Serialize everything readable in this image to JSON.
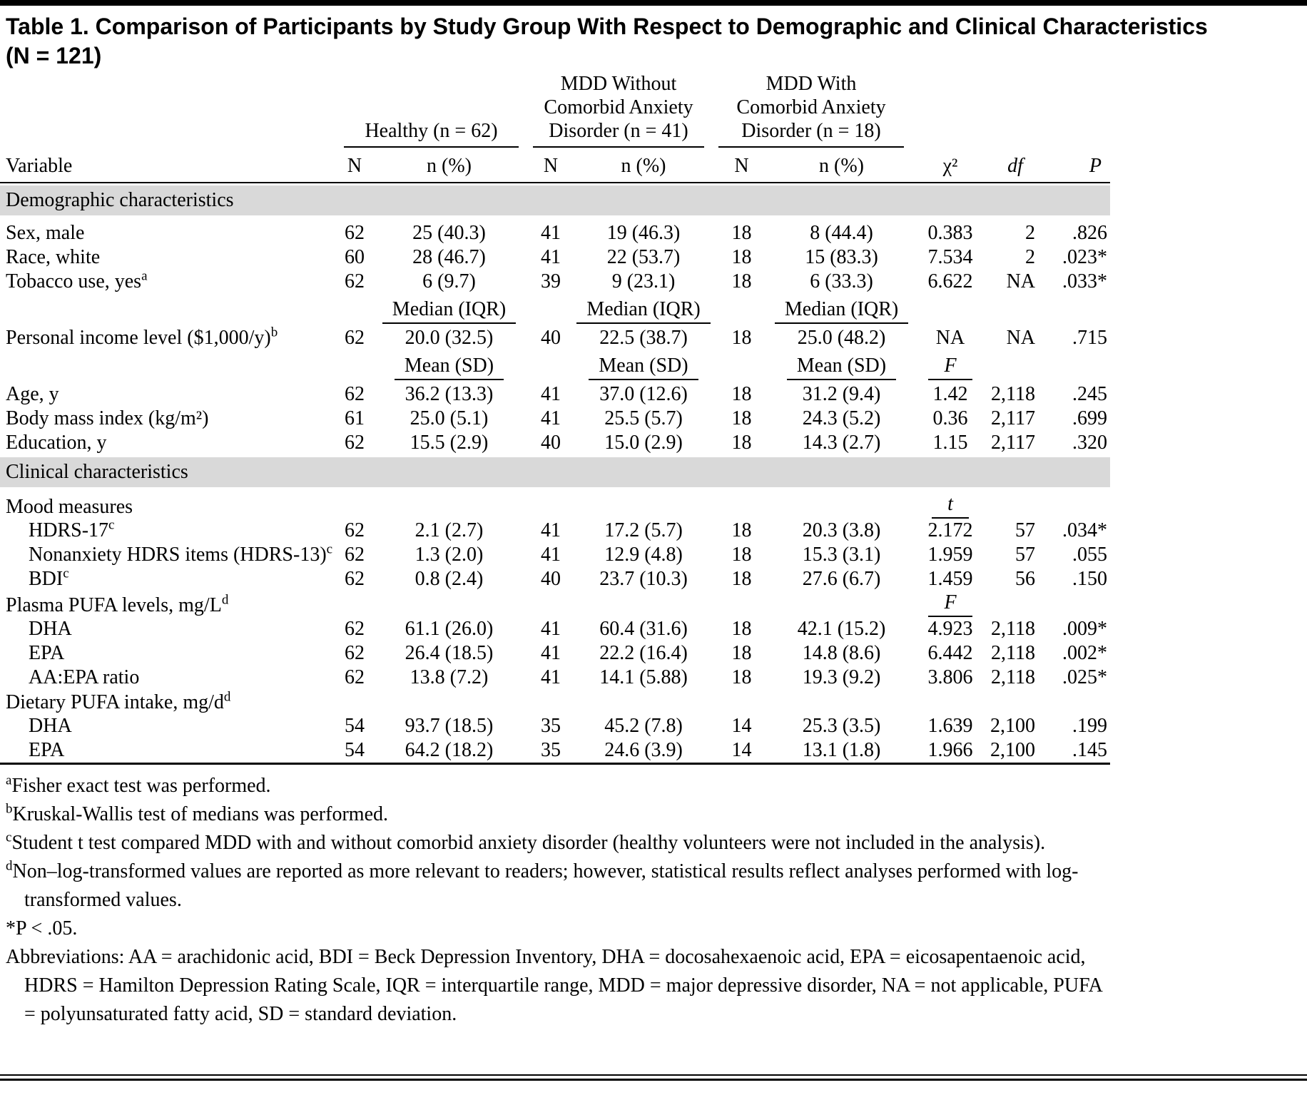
{
  "colors": {
    "section_header_bg": "#d9d9d9",
    "text": "#000000",
    "background": "#ffffff"
  },
  "title": {
    "line1": "Table 1. Comparison of Participants by Study Group With Respect to Demographic and Clinical Characteristics",
    "line2": "(N = 121)"
  },
  "header": {
    "variable": "Variable",
    "groups": [
      {
        "label": "Healthy (n = 62)",
        "n_label": "N",
        "npct_label": "n (%)"
      },
      {
        "label": "MDD Without Comorbid Anxiety Disorder (n = 41)",
        "n_label": "N",
        "npct_label": "n (%)"
      },
      {
        "label": "MDD With Comorbid Anxiety Disorder (n = 18)",
        "n_label": "N",
        "npct_label": "n (%)"
      }
    ],
    "chi2": "χ²",
    "df": "df",
    "p": "P"
  },
  "rows": [
    {
      "type": "section",
      "label": "Demographic characteristics"
    },
    {
      "type": "data",
      "label": "Sex, male",
      "sup": "",
      "indent": false,
      "cells": [
        "62",
        "25 (40.3)",
        "41",
        "19 (46.3)",
        "18",
        "8 (44.4)",
        "0.383",
        "2",
        ".826"
      ]
    },
    {
      "type": "data",
      "label": "Race, white",
      "sup": "",
      "indent": false,
      "cells": [
        "60",
        "28 (46.7)",
        "41",
        "22 (53.7)",
        "18",
        "15 (83.3)",
        "7.534",
        "2",
        ".023*"
      ]
    },
    {
      "type": "data",
      "label": "Tobacco use, yes",
      "sup": "a",
      "indent": false,
      "cells": [
        "62",
        "6 (9.7)",
        "39",
        "9 (23.1)",
        "18",
        "6 (33.3)",
        "6.622",
        "NA",
        ".033*"
      ]
    },
    {
      "type": "subhead",
      "measures": [
        "Median (IQR)",
        "Median (IQR)",
        "Median (IQR)"
      ],
      "stat": ""
    },
    {
      "type": "data",
      "label": "Personal income level ($1,000/y)",
      "sup": "b",
      "indent": false,
      "cells": [
        "62",
        "20.0 (32.5)",
        "40",
        "22.5 (38.7)",
        "18",
        "25.0 (48.2)",
        "NA",
        "NA",
        ".715"
      ]
    },
    {
      "type": "subhead",
      "measures": [
        "Mean (SD)",
        "Mean (SD)",
        "Mean (SD)"
      ],
      "stat": "F"
    },
    {
      "type": "data",
      "label": "Age, y",
      "sup": "",
      "indent": false,
      "cells": [
        "62",
        "36.2 (13.3)",
        "41",
        "37.0 (12.6)",
        "18",
        "31.2 (9.4)",
        "1.42",
        "2,118",
        ".245"
      ]
    },
    {
      "type": "data",
      "label": "Body mass index (kg/m²)",
      "sup": "",
      "indent": false,
      "cells": [
        "61",
        "25.0 (5.1)",
        "41",
        "25.5 (5.7)",
        "18",
        "24.3 (5.2)",
        "0.36",
        "2,117",
        ".699"
      ]
    },
    {
      "type": "data",
      "label": "Education, y",
      "sup": "",
      "indent": false,
      "cells": [
        "62",
        "15.5 (2.9)",
        "40",
        "15.0 (2.9)",
        "18",
        "14.3 (2.7)",
        "1.15",
        "2,117",
        ".320"
      ]
    },
    {
      "type": "section",
      "label": "Clinical characteristics"
    },
    {
      "type": "group",
      "label": "Mood measures",
      "sup": "",
      "stat": "t"
    },
    {
      "type": "data",
      "label": "HDRS-17",
      "sup": "c",
      "indent": true,
      "cells": [
        "62",
        "2.1 (2.7)",
        "41",
        "17.2 (5.7)",
        "18",
        "20.3 (3.8)",
        "2.172",
        "57",
        ".034*"
      ]
    },
    {
      "type": "data",
      "label": "Nonanxiety HDRS items (HDRS-13)",
      "sup": "c",
      "indent": true,
      "cells": [
        "62",
        "1.3 (2.0)",
        "41",
        "12.9 (4.8)",
        "18",
        "15.3 (3.1)",
        "1.959",
        "57",
        ".055"
      ]
    },
    {
      "type": "data",
      "label": "BDI",
      "sup": "c",
      "indent": true,
      "cells": [
        "62",
        "0.8 (2.4)",
        "40",
        "23.7 (10.3)",
        "18",
        "27.6 (6.7)",
        "1.459",
        "56",
        ".150"
      ]
    },
    {
      "type": "group",
      "label": "Plasma PUFA levels, mg/L",
      "sup": "d",
      "stat": "F"
    },
    {
      "type": "data",
      "label": "DHA",
      "sup": "",
      "indent": true,
      "cells": [
        "62",
        "61.1 (26.0)",
        "41",
        "60.4 (31.6)",
        "18",
        "42.1 (15.2)",
        "4.923",
        "2,118",
        ".009*"
      ]
    },
    {
      "type": "data",
      "label": "EPA",
      "sup": "",
      "indent": true,
      "cells": [
        "62",
        "26.4 (18.5)",
        "41",
        "22.2 (16.4)",
        "18",
        "14.8 (8.6)",
        "6.442",
        "2,118",
        ".002*"
      ]
    },
    {
      "type": "data",
      "label": "AA:EPA ratio",
      "sup": "",
      "indent": true,
      "cells": [
        "62",
        "13.8 (7.2)",
        "41",
        "14.1 (5.88)",
        "18",
        "19.3 (9.2)",
        "3.806",
        "2,118",
        ".025*"
      ]
    },
    {
      "type": "group",
      "label": "Dietary PUFA intake, mg/d",
      "sup": "d",
      "stat": ""
    },
    {
      "type": "data",
      "label": "DHA",
      "sup": "",
      "indent": true,
      "cells": [
        "54",
        "93.7 (18.5)",
        "35",
        "45.2 (7.8)",
        "14",
        "25.3 (3.5)",
        "1.639",
        "2,100",
        ".199"
      ]
    },
    {
      "type": "data",
      "label": "EPA",
      "sup": "",
      "indent": true,
      "cells": [
        "54",
        "64.2 (18.2)",
        "35",
        "24.6 (3.9)",
        "14",
        "13.1 (1.8)",
        "1.966",
        "2,100",
        ".145"
      ]
    }
  ],
  "footnotes": [
    {
      "sup": "a",
      "text": "Fisher exact test was performed."
    },
    {
      "sup": "b",
      "text": "Kruskal-Wallis test of medians was performed."
    },
    {
      "sup": "c",
      "text": "Student t test compared MDD with and without comorbid anxiety disorder (healthy volunteers were not included in the analysis)."
    },
    {
      "sup": "d",
      "text": "Non–log-transformed values are reported as more relevant to readers; however, statistical results reflect analyses performed with log-transformed values."
    },
    {
      "sup": "",
      "text": "*P < .05."
    },
    {
      "sup": "",
      "text": "Abbreviations: AA = arachidonic acid, BDI = Beck Depression Inventory, DHA = docosahexaenoic acid, EPA = eicosapentaenoic acid, HDRS = Hamilton Depression Rating Scale, IQR = interquartile range, MDD = major depressive disorder, NA = not applicable, PUFA = polyunsaturated fatty acid, SD = standard deviation."
    }
  ]
}
